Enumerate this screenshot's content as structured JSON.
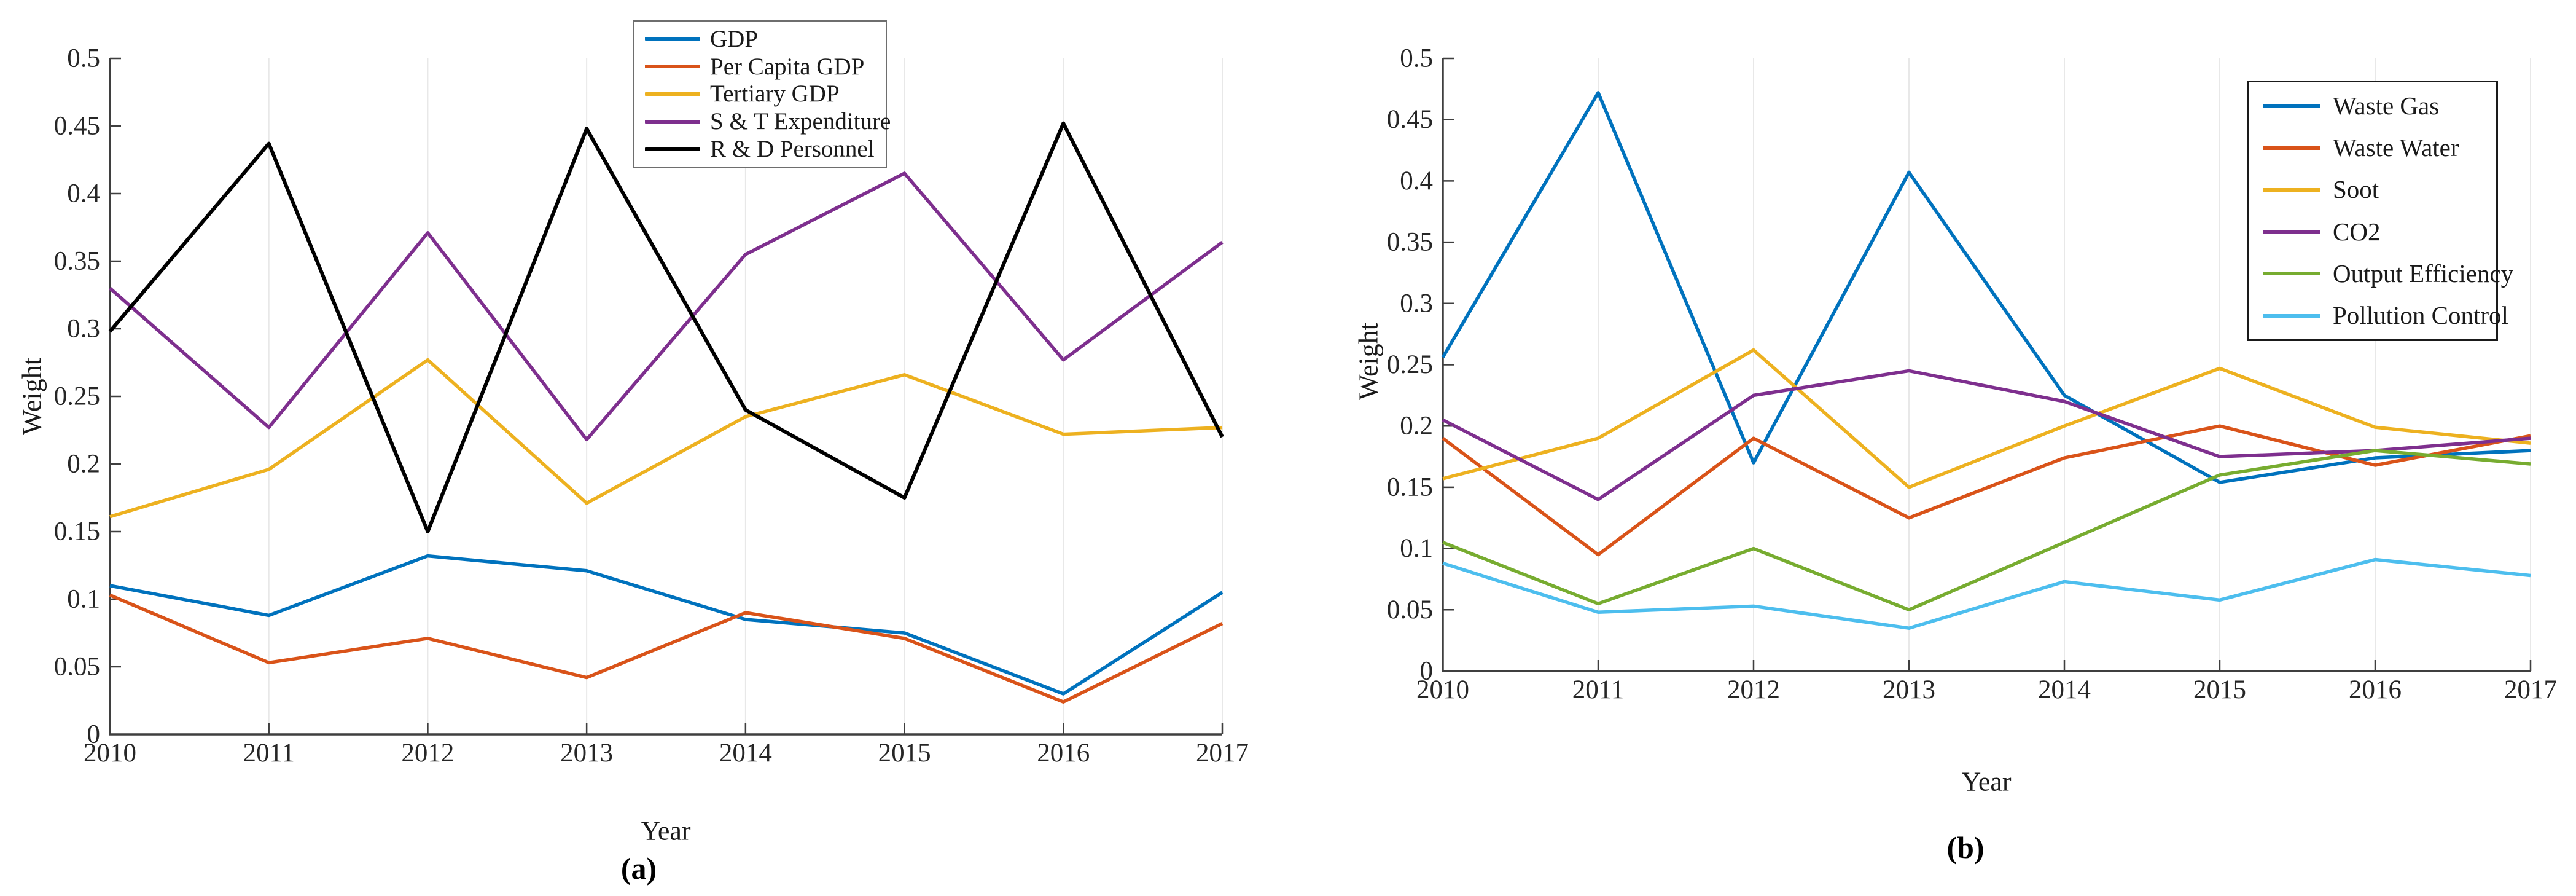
{
  "figure": {
    "background": "#ffffff",
    "axis_color": "#3f3f3f",
    "grid_color": "#e8e8e8",
    "tick_label_color": "#262626"
  },
  "chart_data": [
    {
      "type": "line",
      "panel": "a",
      "caption": "(a)",
      "title": "",
      "xlabel": "Year",
      "ylabel": "Weight",
      "x": [
        2010,
        2011,
        2012,
        2013,
        2014,
        2015,
        2016,
        2017
      ],
      "x_tick_labels": [
        "2010",
        "2011",
        "2012",
        "2013",
        "2014",
        "2015",
        "2016",
        "2017"
      ],
      "y_tick_labels": [
        "0",
        "0.05",
        "0.1",
        "0.15",
        "0.2",
        "0.25",
        "0.3",
        "0.35",
        "0.4",
        "0.45",
        "0.5"
      ],
      "ylim": [
        0,
        0.5
      ],
      "grid": "vertical-only",
      "legend_position": "top-center-inside",
      "series": [
        {
          "name": "GDP",
          "color": "#0072BD",
          "values": [
            0.11,
            0.088,
            0.132,
            0.121,
            0.085,
            0.075,
            0.03,
            0.105
          ]
        },
        {
          "name": "Per Capita GDP",
          "color": "#D95319",
          "values": [
            0.103,
            0.053,
            0.071,
            0.042,
            0.09,
            0.071,
            0.024,
            0.082
          ]
        },
        {
          "name": "Tertiary GDP",
          "color": "#EDB120",
          "values": [
            0.161,
            0.196,
            0.277,
            0.171,
            0.235,
            0.266,
            0.222,
            0.227
          ]
        },
        {
          "name": "S & T Expenditure",
          "color": "#7E2F8E",
          "values": [
            0.33,
            0.227,
            0.371,
            0.218,
            0.355,
            0.415,
            0.277,
            0.364
          ]
        },
        {
          "name": "R & D Personnel",
          "color": "#000000",
          "values": [
            0.298,
            0.437,
            0.15,
            0.448,
            0.24,
            0.175,
            0.452,
            0.22
          ]
        }
      ]
    },
    {
      "type": "line",
      "panel": "b",
      "caption": "(b)",
      "title": "",
      "xlabel": "Year",
      "ylabel": "Weight",
      "x": [
        2010,
        2011,
        2012,
        2013,
        2014,
        2015,
        2016,
        2017
      ],
      "x_tick_labels": [
        "2010",
        "2011",
        "2012",
        "2013",
        "2014",
        "2015",
        "2016",
        "2017"
      ],
      "y_tick_labels": [
        "0",
        "0.05",
        "0.1",
        "0.15",
        "0.2",
        "0.25",
        "0.3",
        "0.35",
        "0.4",
        "0.45",
        "0.5"
      ],
      "ylim": [
        0,
        0.5
      ],
      "grid": "vertical-only",
      "legend_position": "top-right-inside",
      "series": [
        {
          "name": "Waste Gas",
          "color": "#0072BD",
          "values": [
            0.256,
            0.472,
            0.17,
            0.407,
            0.225,
            0.154,
            0.174,
            0.18
          ]
        },
        {
          "name": "Waste Water",
          "color": "#D95319",
          "values": [
            0.19,
            0.095,
            0.19,
            0.125,
            0.174,
            0.2,
            0.168,
            0.192
          ]
        },
        {
          "name": "Soot",
          "color": "#EDB120",
          "values": [
            0.157,
            0.19,
            0.262,
            0.15,
            0.2,
            0.247,
            0.199,
            0.186
          ]
        },
        {
          "name": "CO2",
          "color": "#7E2F8E",
          "values": [
            0.205,
            0.14,
            0.225,
            0.245,
            0.22,
            0.175,
            0.18,
            0.19
          ]
        },
        {
          "name": "Output Efficiency",
          "color": "#77AC30",
          "values": [
            0.105,
            0.055,
            0.1,
            0.05,
            0.105,
            0.16,
            0.18,
            0.169
          ]
        },
        {
          "name": "Pollution Control",
          "color": "#4DBEEE",
          "values": [
            0.088,
            0.048,
            0.053,
            0.035,
            0.073,
            0.058,
            0.091,
            0.078
          ]
        }
      ]
    }
  ]
}
